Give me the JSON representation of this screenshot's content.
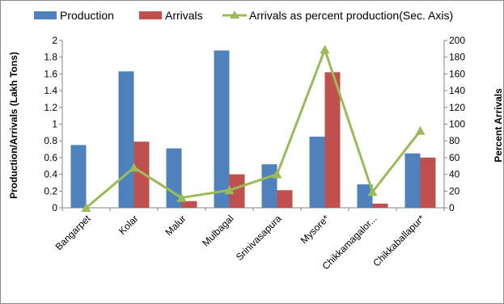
{
  "chart_data": {
    "type": "bar",
    "categories": [
      "Bangarpet",
      "Kolar",
      "Malur",
      "Mulbagal",
      "Srinivasapura",
      "Mysore*",
      "Chikkamagalor...",
      "Chikkaballapur*"
    ],
    "series": [
      {
        "name": "Production",
        "type": "bar",
        "axis": "primary",
        "color": "#4F81BD",
        "values": [
          0.75,
          1.63,
          0.71,
          1.88,
          0.52,
          0.85,
          0.28,
          0.65
        ]
      },
      {
        "name": "Arrivals",
        "type": "bar",
        "axis": "primary",
        "color": "#C0504D",
        "values": [
          0,
          0.79,
          0.08,
          0.4,
          0.21,
          1.62,
          0.05,
          0.6
        ]
      },
      {
        "name": "Arrivals as percent production(Sec. Axis)",
        "type": "line",
        "axis": "secondary",
        "color": "#9BBB59",
        "values": [
          0,
          48,
          12,
          21,
          40,
          189,
          19,
          92
        ]
      }
    ],
    "ylabel": "Production/Arrivals (Lakh Tons)",
    "y2label": "Percent Arrivals",
    "ylim": [
      0,
      2
    ],
    "y2lim": [
      0,
      200
    ],
    "yticks": [
      "0",
      "0.2",
      "0.4",
      "0.6",
      "0.8",
      "1",
      "1.2",
      "1.4",
      "1.6",
      "1.8",
      "2"
    ],
    "y2ticks": [
      "0",
      "20",
      "40",
      "60",
      "80",
      "100",
      "120",
      "140",
      "160",
      "180",
      "200"
    ],
    "grid": false,
    "legend": "top"
  }
}
